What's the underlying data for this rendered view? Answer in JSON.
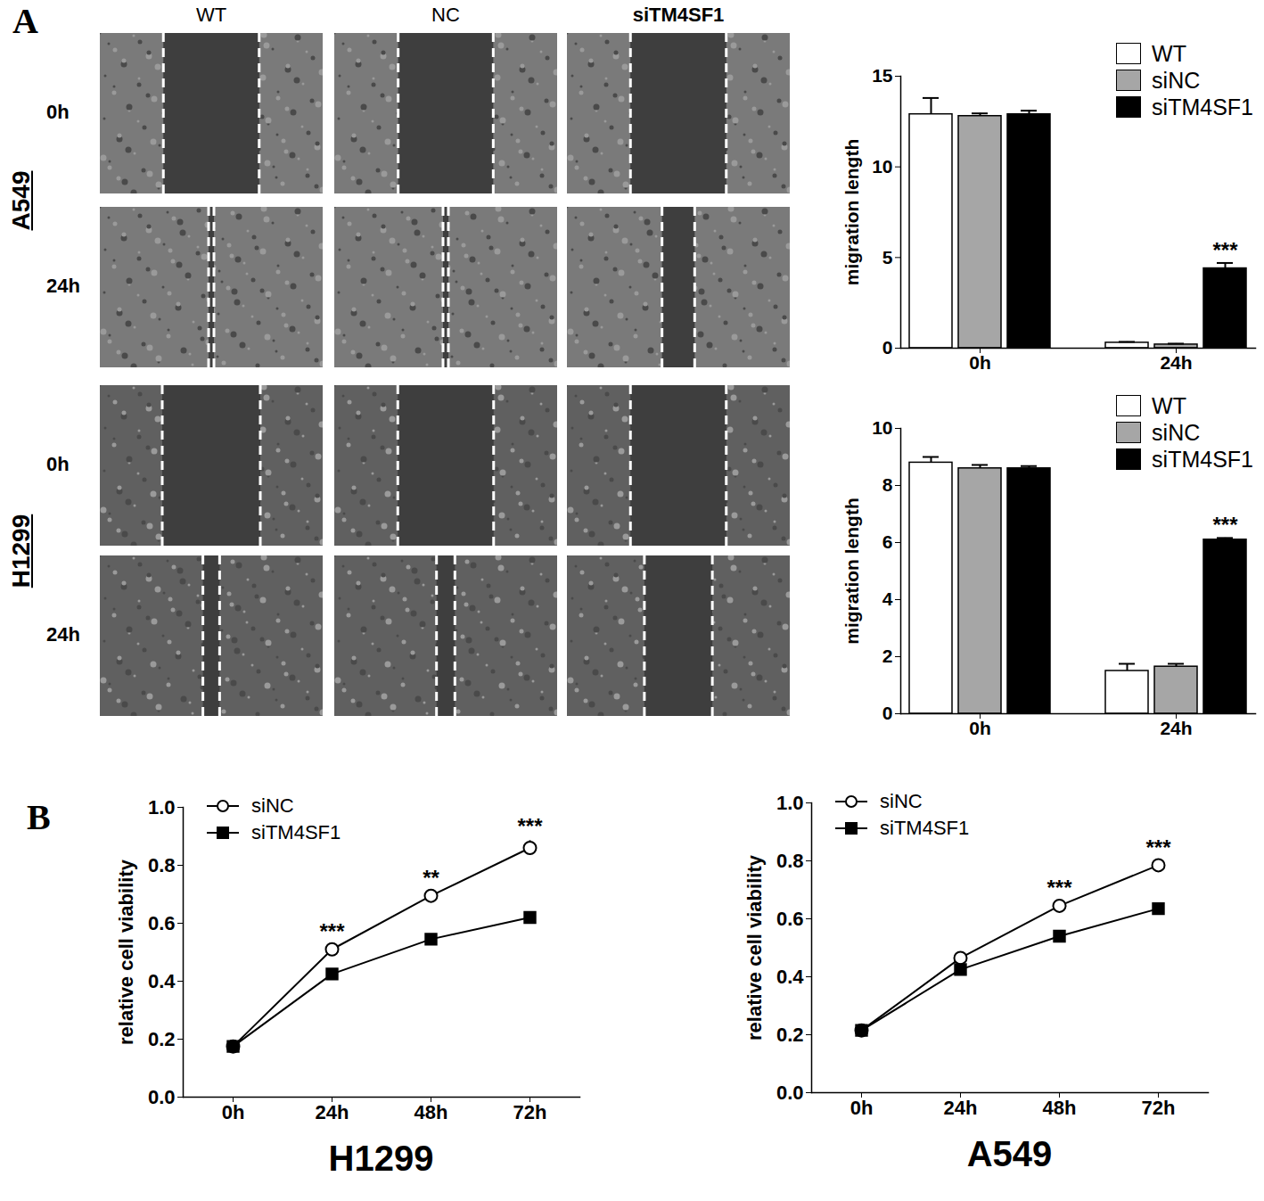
{
  "panel_labels": [
    "A",
    "B"
  ],
  "image_grid": {
    "columns": [
      "WT",
      "NC",
      "siTM4SF1"
    ],
    "rows": [
      {
        "cell_line": "A549",
        "times": [
          "0h",
          "24h"
        ]
      },
      {
        "cell_line": "H1299",
        "times": [
          "0h",
          "24h"
        ]
      }
    ]
  },
  "chart_data": [
    {
      "type": "bar",
      "ylabel": "migration length",
      "categories": [
        "0h",
        "24h"
      ],
      "series": [
        {
          "name": "WT",
          "color": "#ffffff",
          "values": [
            12.9,
            0.3
          ],
          "errors": [
            0.9,
            0.05
          ]
        },
        {
          "name": "siNC",
          "color": "#a6a6a6",
          "values": [
            12.8,
            0.2
          ],
          "errors": [
            0.15,
            0.05
          ]
        },
        {
          "name": "siTM4SF1",
          "color": "#000000",
          "values": [
            12.9,
            4.4
          ],
          "errors": [
            0.2,
            0.3
          ]
        }
      ],
      "ylim": [
        0,
        15
      ],
      "yticks": [
        0,
        5,
        10,
        15
      ],
      "grid": false,
      "legend": "top-right",
      "annotations": [
        {
          "text": "***",
          "category": "24h",
          "series": "siTM4SF1"
        }
      ]
    },
    {
      "type": "bar",
      "ylabel": "migration length",
      "categories": [
        "0h",
        "24h"
      ],
      "series": [
        {
          "name": "WT",
          "color": "#ffffff",
          "values": [
            8.8,
            1.5
          ],
          "errors": [
            0.2,
            0.25
          ]
        },
        {
          "name": "siNC",
          "color": "#a6a6a6",
          "values": [
            8.6,
            1.65
          ],
          "errors": [
            0.12,
            0.1
          ]
        },
        {
          "name": "siTM4SF1",
          "color": "#000000",
          "values": [
            8.6,
            6.1
          ],
          "errors": [
            0.08,
            0.06
          ]
        }
      ],
      "ylim": [
        0,
        10
      ],
      "yticks": [
        0,
        2,
        4,
        6,
        8,
        10
      ],
      "grid": false,
      "legend": "top-right",
      "annotations": [
        {
          "text": "***",
          "category": "24h",
          "series": "siTM4SF1"
        }
      ]
    },
    {
      "type": "line",
      "xlabel": "H1299",
      "ylabel": "relative cell viability",
      "x": [
        "0h",
        "24h",
        "48h",
        "72h"
      ],
      "series": [
        {
          "name": "siNC",
          "color": "#000000",
          "marker": "open-circle",
          "values": [
            0.175,
            0.51,
            0.695,
            0.86
          ],
          "errors": [
            0.01,
            0.01,
            0.01,
            0.025
          ]
        },
        {
          "name": "siTM4SF1",
          "color": "#000000",
          "marker": "square",
          "values": [
            0.175,
            0.425,
            0.545,
            0.62
          ],
          "errors": [
            0.005,
            0.01,
            0.01,
            0.01
          ]
        }
      ],
      "ylim": [
        0,
        1
      ],
      "yticks": [
        {
          "value": 0,
          "label": "0.0"
        },
        0.2,
        0.4,
        0.6,
        0.8,
        {
          "value": 1,
          "label": "1.0"
        }
      ],
      "grid": false,
      "legend": "top-left",
      "annotations": [
        {
          "text": "***",
          "x": "24h"
        },
        {
          "text": "**",
          "x": "48h"
        },
        {
          "text": "***",
          "x": "72h"
        }
      ]
    },
    {
      "type": "line",
      "xlabel": "A549",
      "ylabel": "relative cell viability",
      "x": [
        "0h",
        "24h",
        "48h",
        "72h"
      ],
      "series": [
        {
          "name": "siNC",
          "color": "#000000",
          "marker": "open-circle",
          "values": [
            0.215,
            0.465,
            0.645,
            0.785
          ],
          "errors": [
            0.01,
            0.01,
            0.01,
            0.01
          ]
        },
        {
          "name": "siTM4SF1",
          "color": "#000000",
          "marker": "square",
          "values": [
            0.215,
            0.425,
            0.54,
            0.635
          ],
          "errors": [
            0.005,
            0.01,
            0.01,
            0.01
          ]
        }
      ],
      "ylim": [
        0,
        1
      ],
      "yticks": [
        {
          "value": 0,
          "label": "0.0"
        },
        0.2,
        0.4,
        0.6,
        0.8,
        {
          "value": 1,
          "label": "1.0"
        }
      ],
      "grid": false,
      "legend": "top-left",
      "annotations": [
        {
          "text": "***",
          "x": "48h"
        },
        {
          "text": "***",
          "x": "72h"
        }
      ]
    }
  ]
}
